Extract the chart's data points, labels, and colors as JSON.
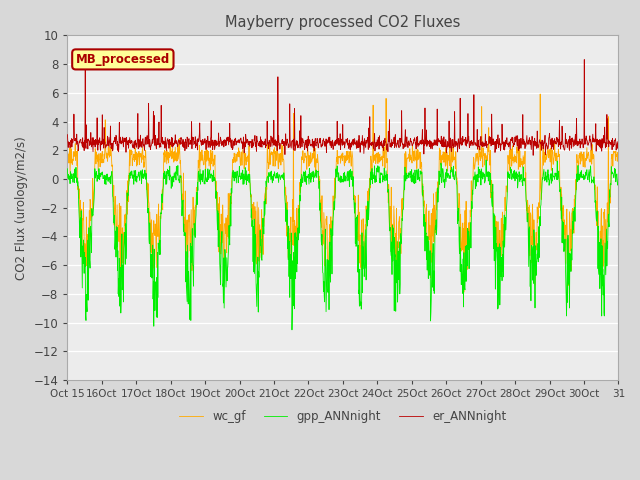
{
  "title": "Mayberry processed CO2 Fluxes",
  "ylabel": "CO2 Flux (urology/m2/s)",
  "xlabel": "",
  "ylim": [
    -14,
    10
  ],
  "yticks": [
    10,
    8,
    6,
    4,
    2,
    0,
    -2,
    -4,
    -6,
    -8,
    -10,
    -12,
    -14
  ],
  "xtick_labels": [
    "Oct 15",
    "16Oct",
    "17Oct",
    "18Oct",
    "19Oct",
    "20Oct",
    "21Oct",
    "22Oct",
    "23Oct",
    "24Oct",
    "25Oct",
    "26Oct",
    "27Oct",
    "28Oct",
    "29Oct",
    "30Oct",
    "31"
  ],
  "series_colors": {
    "gpp_ANNnight": "#00ee00",
    "er_ANNnight": "#bb0000",
    "wc_gf": "#ffaa00"
  },
  "legend_box_color": "#ffff99",
  "legend_box_edge": "#aa0000",
  "legend_text": "MB_processed",
  "background_color": "#d8d8d8",
  "plot_background": "#ececec",
  "grid_color": "#ffffff",
  "title_color": "#444444",
  "axis_label_color": "#444444",
  "tick_label_color": "#444444",
  "n_points": 1488,
  "seed": 7
}
